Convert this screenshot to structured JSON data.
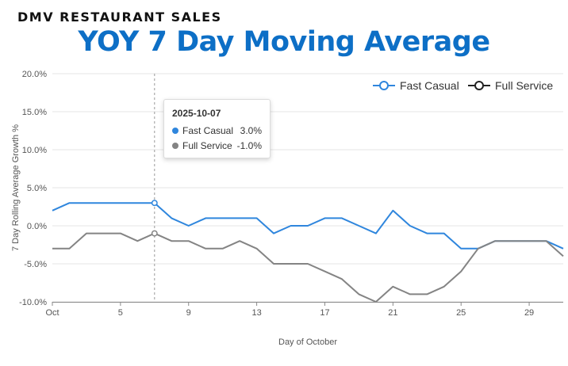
{
  "header": {
    "supertitle": "DMV RESTAURANT SALES",
    "title": "YOY 7 Day Moving Average"
  },
  "colors": {
    "fast_casual": "#2f86dd",
    "full_service": "#848484",
    "title": "#0d6fc6"
  },
  "chart_data": {
    "type": "line",
    "title": "YOY 7 Day Moving Average",
    "xlabel": "Day of October",
    "ylabel": "7 Day Rolling Average Growth %",
    "x": [
      1,
      2,
      3,
      4,
      5,
      6,
      7,
      8,
      9,
      10,
      11,
      12,
      13,
      14,
      15,
      16,
      17,
      18,
      19,
      20,
      21,
      22,
      23,
      24,
      25,
      26,
      27,
      28,
      29,
      30,
      31
    ],
    "xlim": [
      1,
      31
    ],
    "ylim": [
      -10,
      20
    ],
    "y_ticks": [
      "-10.0%",
      "-5.0%",
      "0.0%",
      "5.0%",
      "10.0%",
      "15.0%",
      "20.0%"
    ],
    "y_tick_values": [
      -10,
      -5,
      0,
      5,
      10,
      15,
      20
    ],
    "x_ticks": [
      {
        "value": 1,
        "label": "Oct"
      },
      {
        "value": 5,
        "label": "5"
      },
      {
        "value": 9,
        "label": "9"
      },
      {
        "value": 13,
        "label": "13"
      },
      {
        "value": 17,
        "label": "17"
      },
      {
        "value": 21,
        "label": "21"
      },
      {
        "value": 25,
        "label": "25"
      },
      {
        "value": 29,
        "label": "29"
      }
    ],
    "grid": true,
    "legend_position": "top-right",
    "series": [
      {
        "name": "Fast Casual",
        "values": [
          2,
          3,
          3,
          3,
          3,
          3,
          3,
          1,
          0,
          1,
          1,
          1,
          1,
          -1,
          0,
          0,
          1,
          1,
          0,
          -1,
          2,
          0,
          -1,
          -1,
          -3,
          -3,
          -2,
          -2,
          -2,
          -2,
          -3
        ]
      },
      {
        "name": "Full Service",
        "values": [
          -3,
          -3,
          -1,
          -1,
          -1,
          -2,
          -1,
          -2,
          -2,
          -3,
          -3,
          -2,
          -3,
          -5,
          -5,
          -5,
          -6,
          -7,
          -9,
          -10,
          -8,
          -9,
          -9,
          -8,
          -6,
          -3,
          -2,
          -2,
          -2,
          -2,
          -4
        ]
      }
    ],
    "hover": {
      "x": 7,
      "date": "2025-10-07",
      "rows": [
        {
          "name": "Fast Casual",
          "value": "3.0%"
        },
        {
          "name": "Full Service",
          "value": "-1.0%"
        }
      ]
    }
  }
}
